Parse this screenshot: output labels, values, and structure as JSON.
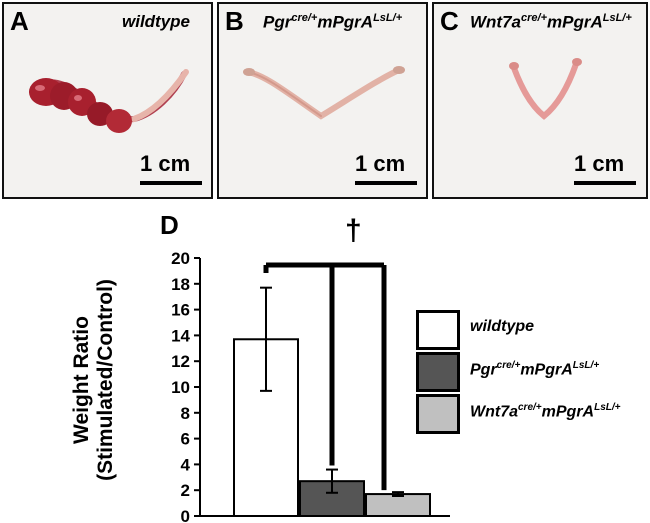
{
  "panels": [
    {
      "letter": "A",
      "genotype_base": "wildtype",
      "genotype_sup": "",
      "genotype_mid": "",
      "genotype_sup2": "",
      "scale_label": "1 cm"
    },
    {
      "letter": "B",
      "genotype_base": "Pgr",
      "genotype_sup": "cre/+",
      "genotype_mid": "mPgrA",
      "genotype_sup2": "LsL/+",
      "scale_label": "1 cm"
    },
    {
      "letter": "C",
      "genotype_base": "Wnt7a",
      "genotype_sup": "cre/+",
      "genotype_mid": "mPgrA",
      "genotype_sup2": "LsL/+",
      "scale_label": "1 cm"
    }
  ],
  "figure_d": {
    "letter": "D",
    "significance_marker": "†"
  },
  "colors": {
    "wildtype": "#ffffff",
    "pgr": "#555555",
    "wnt7a": "#c0c0c0",
    "tissue_red": "#a8202e",
    "tissue_pale": "#e2b2a6"
  },
  "chart_data": {
    "type": "bar",
    "ylabel_line1": "Weight Ratio",
    "ylabel_line2": "(Stimulated/Control)",
    "ylim": [
      0,
      20
    ],
    "yticks": [
      "0",
      "2",
      "4",
      "6",
      "8",
      "10",
      "12",
      "14",
      "16",
      "18",
      "20"
    ],
    "grid": false,
    "legend_placement": "right",
    "categories": [
      {
        "base": "wildtype",
        "sup": "",
        "mid": "",
        "sup2": ""
      },
      {
        "base": "Pgr",
        "sup": "cre/+",
        "mid": "mPgrA",
        "sup2": "LsL/+"
      },
      {
        "base": "Wnt7a",
        "sup": "cre/+",
        "mid": "mPgrA",
        "sup2": "LsL/+"
      }
    ],
    "values": [
      13.7,
      2.7,
      1.7
    ],
    "errors": [
      4.0,
      0.9,
      0.15
    ]
  }
}
